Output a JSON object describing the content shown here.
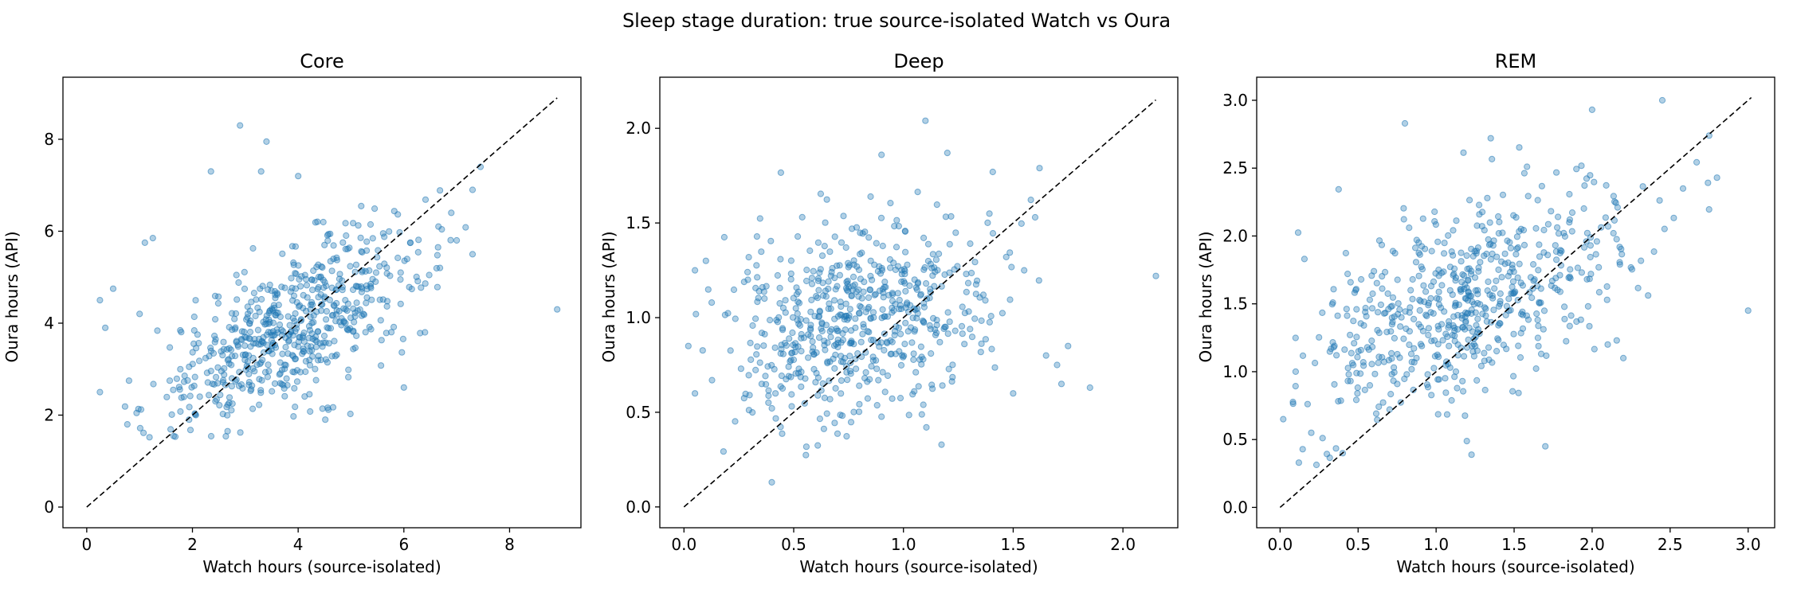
{
  "figure": {
    "suptitle": "Sleep stage duration: true source-isolated Watch vs Oura"
  },
  "chart_data": [
    {
      "type": "scatter",
      "title": "Core",
      "xlabel": "Watch hours (source-isolated)",
      "ylabel": "Oura hours (API)",
      "xlim": [
        -0.45,
        9.35
      ],
      "ylim": [
        -0.45,
        9.35
      ],
      "xticks": [
        "0",
        "2",
        "4",
        "6",
        "8"
      ],
      "xtick_values": [
        0,
        2,
        4,
        6,
        8
      ],
      "yticks": [
        "0",
        "2",
        "4",
        "6",
        "8"
      ],
      "ytick_values": [
        0,
        2,
        4,
        6,
        8
      ],
      "identity_line": [
        0,
        8.9
      ],
      "point_count": 600,
      "point_color": "#1f77b4",
      "distribution": {
        "x_mean": 3.85,
        "x_sd": 1.3,
        "slope": 0.6,
        "intercept": 1.55,
        "noise_sd": 0.8,
        "x_min": 0.25,
        "x_max": 7.5,
        "y_min": 1.5,
        "y_max": 7.5
      },
      "extra_points": [
        {
          "x": 0.25,
          "y": 2.5
        },
        {
          "x": 0.25,
          "y": 4.5
        },
        {
          "x": 0.35,
          "y": 3.9
        },
        {
          "x": 0.5,
          "y": 4.75
        },
        {
          "x": 0.8,
          "y": 2.75
        },
        {
          "x": 1.0,
          "y": 4.2
        },
        {
          "x": 1.1,
          "y": 5.75
        },
        {
          "x": 1.25,
          "y": 5.85
        },
        {
          "x": 2.35,
          "y": 7.3
        },
        {
          "x": 2.9,
          "y": 8.3
        },
        {
          "x": 3.4,
          "y": 7.95
        },
        {
          "x": 3.3,
          "y": 7.3
        },
        {
          "x": 4.0,
          "y": 7.2
        },
        {
          "x": 7.0,
          "y": 5.8
        },
        {
          "x": 7.3,
          "y": 5.5
        },
        {
          "x": 7.45,
          "y": 7.4
        },
        {
          "x": 7.3,
          "y": 6.9
        },
        {
          "x": 8.9,
          "y": 4.3
        },
        {
          "x": 6.0,
          "y": 2.6
        },
        {
          "x": 6.4,
          "y": 3.8
        }
      ]
    },
    {
      "type": "scatter",
      "title": "Deep",
      "xlabel": "Watch hours (source-isolated)",
      "ylabel": "Oura hours (API)",
      "xlim": [
        -0.11,
        2.25
      ],
      "ylim": [
        -0.11,
        2.27
      ],
      "xticks": [
        "0.0",
        "0.5",
        "1.0",
        "1.5",
        "2.0"
      ],
      "xtick_values": [
        0,
        0.5,
        1.0,
        1.5,
        2.0
      ],
      "yticks": [
        "0.0",
        "0.5",
        "1.0",
        "1.5",
        "2.0"
      ],
      "ytick_values": [
        0,
        0.5,
        1.0,
        1.5,
        2.0
      ],
      "identity_line": [
        0,
        2.15
      ],
      "point_count": 600,
      "point_color": "#1f77b4",
      "distribution": {
        "x_mean": 0.8,
        "x_sd": 0.3,
        "slope": 0.2,
        "intercept": 0.83,
        "noise_sd": 0.27,
        "x_min": 0.05,
        "x_max": 1.7,
        "y_min": 0.25,
        "y_max": 1.8
      },
      "extra_points": [
        {
          "x": 0.02,
          "y": 0.85
        },
        {
          "x": 0.05,
          "y": 0.6
        },
        {
          "x": 0.05,
          "y": 1.25
        },
        {
          "x": 0.1,
          "y": 1.3
        },
        {
          "x": 0.4,
          "y": 0.13
        },
        {
          "x": 1.1,
          "y": 2.04
        },
        {
          "x": 1.2,
          "y": 1.87
        },
        {
          "x": 0.9,
          "y": 1.86
        },
        {
          "x": 1.62,
          "y": 1.79
        },
        {
          "x": 1.6,
          "y": 1.53
        },
        {
          "x": 2.15,
          "y": 1.22
        },
        {
          "x": 1.85,
          "y": 0.63
        },
        {
          "x": 1.7,
          "y": 0.75
        },
        {
          "x": 1.72,
          "y": 0.65
        },
        {
          "x": 1.65,
          "y": 0.8
        },
        {
          "x": 1.5,
          "y": 0.6
        },
        {
          "x": 1.75,
          "y": 0.85
        },
        {
          "x": 1.55,
          "y": 1.25
        }
      ]
    },
    {
      "type": "scatter",
      "title": "REM",
      "xlabel": "Watch hours (source-isolated)",
      "ylabel": "Oura hours (API)",
      "xlim": [
        -0.15,
        3.17
      ],
      "ylim": [
        -0.15,
        3.17
      ],
      "xticks": [
        "0.0",
        "0.5",
        "1.0",
        "1.5",
        "2.0",
        "2.5",
        "3.0"
      ],
      "xtick_values": [
        0,
        0.5,
        1.0,
        1.5,
        2.0,
        2.5,
        3.0
      ],
      "yticks": [
        "0.0",
        "0.5",
        "1.0",
        "1.5",
        "2.0",
        "2.5",
        "3.0"
      ],
      "ytick_values": [
        0,
        0.5,
        1.0,
        1.5,
        2.0,
        2.5,
        3.0
      ],
      "identity_line": [
        0,
        3.02
      ],
      "point_count": 600,
      "point_color": "#1f77b4",
      "distribution": {
        "x_mean": 1.2,
        "x_sd": 0.55,
        "slope": 0.45,
        "intercept": 0.95,
        "noise_sd": 0.38,
        "x_min": 0.05,
        "x_max": 2.85,
        "y_min": 0.25,
        "y_max": 2.9
      },
      "extra_points": [
        {
          "x": 0.02,
          "y": 0.65
        },
        {
          "x": 0.1,
          "y": 1.0
        },
        {
          "x": 0.12,
          "y": 0.33
        },
        {
          "x": 0.2,
          "y": 0.55
        },
        {
          "x": 0.8,
          "y": 2.83
        },
        {
          "x": 1.35,
          "y": 2.72
        },
        {
          "x": 2.0,
          "y": 2.93
        },
        {
          "x": 2.45,
          "y": 3.0
        },
        {
          "x": 2.75,
          "y": 2.74
        },
        {
          "x": 2.8,
          "y": 2.43
        },
        {
          "x": 3.0,
          "y": 1.45
        },
        {
          "x": 1.7,
          "y": 0.45
        },
        {
          "x": 2.1,
          "y": 1.2
        },
        {
          "x": 2.2,
          "y": 1.1
        }
      ]
    }
  ]
}
